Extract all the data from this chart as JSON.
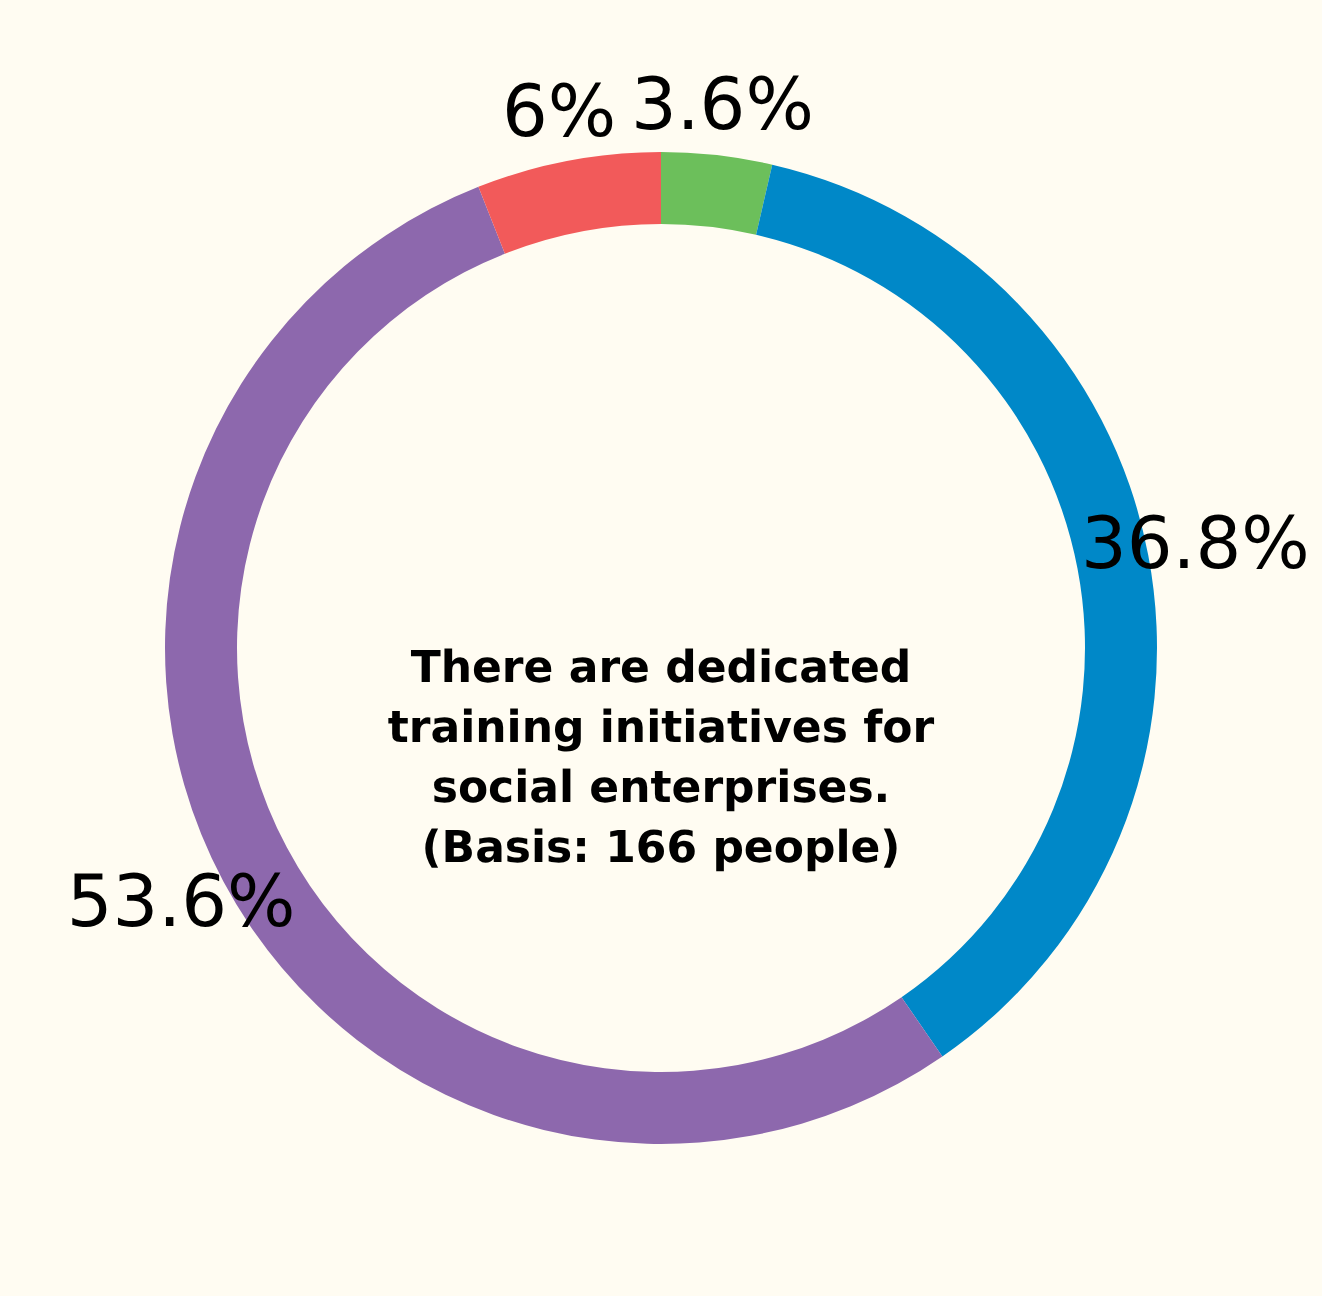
{
  "chart_data": {
    "type": "donut",
    "categories": [
      null,
      null,
      null,
      null
    ],
    "values": [
      3.6,
      36.8,
      53.6,
      6
    ],
    "colors": [
      "#6cbf5b",
      "#0088c8",
      "#8d68ad",
      "#f25a5a"
    ],
    "value_labels": [
      "3.6%",
      "36.8%",
      "53.6%",
      "6%"
    ],
    "annotations": [
      "There are dedicated training initiatives for social enterprises.",
      "(Basis: 166 people)"
    ]
  }
}
